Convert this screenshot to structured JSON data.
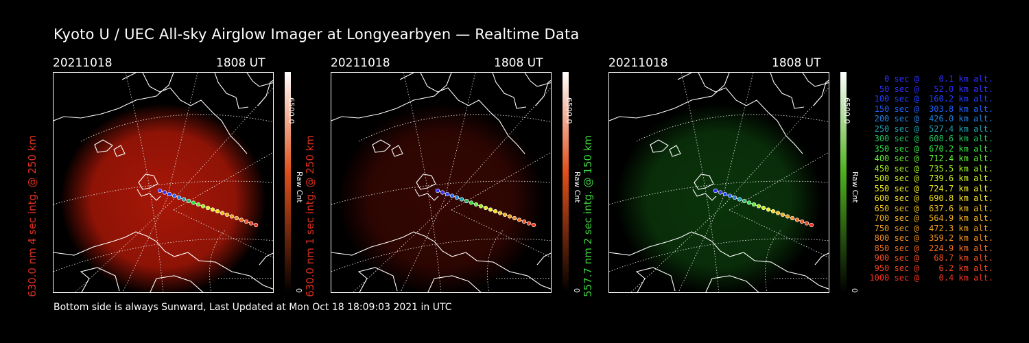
{
  "title": "Kyoto U / UEC All-sky Airglow Imager at Longyearbyen — Realtime Data",
  "footer": "Bottom side is always Sunward, Last Updated at Mon Oct 18 18:09:03 2021 in UTC",
  "panels": [
    {
      "date": "20211018",
      "time": "1808 UT",
      "side_label": "630.0 nm 4 sec intg. @ 250 km",
      "side_color": "#e03020",
      "cb_max": "6500.0",
      "cb_min": "0",
      "cb_unit": "Raw Cnt",
      "color_top": "#ffffff",
      "color_mid": "#e0501a",
      "glow_color": "#b01808",
      "glow_intensity": 0.95
    },
    {
      "date": "20211018",
      "time": "1808 UT",
      "side_label": "630.0 nm 1 sec intg. @ 250 km",
      "side_color": "#e03020",
      "cb_max": "6500.0",
      "cb_min": "0",
      "cb_unit": "Raw Cnt",
      "color_top": "#ffffff",
      "color_mid": "#e0501a",
      "glow_color": "#3a0703",
      "glow_intensity": 0.9
    },
    {
      "date": "20211018",
      "time": "1808 UT",
      "side_label": "557.7 nm 2 sec intg. @ 150 km",
      "side_color": "#3cd23c",
      "cb_max": "6500.0",
      "cb_min": "0",
      "cb_unit": "Raw Cnt",
      "color_top": "#ffffff",
      "color_mid": "#50b020",
      "glow_color": "#0c3a0c",
      "glow_intensity": 0.9
    }
  ],
  "legend": [
    {
      "text": "   0 sec @    0.1 km alt.",
      "color": "#3030ff"
    },
    {
      "text": "  50 sec @   52.0 km alt.",
      "color": "#3030ff"
    },
    {
      "text": " 100 sec @  160.2 km alt.",
      "color": "#2040ff"
    },
    {
      "text": " 150 sec @  303.8 km alt.",
      "color": "#2060ff"
    },
    {
      "text": " 200 sec @  426.0 km alt.",
      "color": "#2080e0"
    },
    {
      "text": " 250 sec @  527.4 km alt.",
      "color": "#20a0b0"
    },
    {
      "text": " 300 sec @  608.6 km alt.",
      "color": "#20c060"
    },
    {
      "text": " 350 sec @  670.2 km alt.",
      "color": "#30e040"
    },
    {
      "text": " 400 sec @  712.4 km alt.",
      "color": "#60f030"
    },
    {
      "text": " 450 sec @  735.5 km alt.",
      "color": "#a0f020"
    },
    {
      "text": " 500 sec @  739.6 km alt.",
      "color": "#d0f020"
    },
    {
      "text": " 550 sec @  724.7 km alt.",
      "color": "#f0f020"
    },
    {
      "text": " 600 sec @  690.8 km alt.",
      "color": "#f0e020"
    },
    {
      "text": " 650 sec @  637.6 km alt.",
      "color": "#f0c020"
    },
    {
      "text": " 700 sec @  564.9 km alt.",
      "color": "#f0b020"
    },
    {
      "text": " 750 sec @  472.3 km alt.",
      "color": "#f0a020"
    },
    {
      "text": " 800 sec @  359.2 km alt.",
      "color": "#f09020"
    },
    {
      "text": " 850 sec @  224.9 km alt.",
      "color": "#f07020"
    },
    {
      "text": " 900 sec @   68.7 km alt.",
      "color": "#f05020"
    },
    {
      "text": " 950 sec @    6.2 km alt.",
      "color": "#f04020"
    },
    {
      "text": "1000 sec @    0.4 km alt.",
      "color": "#f03020"
    }
  ]
}
